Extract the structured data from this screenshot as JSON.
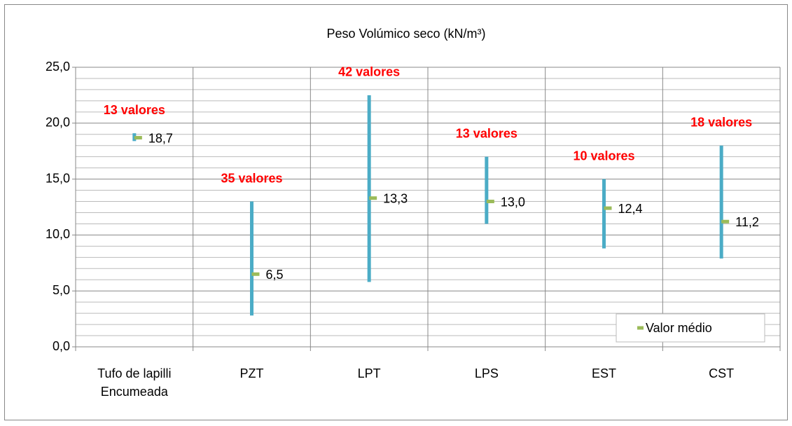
{
  "chart_data": {
    "type": "range",
    "title": "Peso Volúmico  seco (kN/m³)",
    "categories": [
      "Tufo de lapilli Encumeada",
      "PZT",
      "LPT",
      "LPS",
      "EST",
      "CST"
    ],
    "ranges": {
      "color": "#4bacc6",
      "low": [
        18.4,
        2.8,
        5.8,
        11.0,
        8.8,
        7.9
      ],
      "high": [
        19.1,
        13.0,
        22.5,
        17.0,
        15.0,
        18.0
      ]
    },
    "series": [
      {
        "name": "Valor médio",
        "color": "#9bbb59",
        "values": [
          18.7,
          6.5,
          13.3,
          13.0,
          12.4,
          11.2
        ],
        "value_labels": [
          "18,7",
          "6,5",
          "13,3",
          "13,0",
          "12,4",
          "11,2"
        ]
      }
    ],
    "annotations": [
      "13 valores",
      "35 valores",
      "42 valores",
      "13 valores",
      "10 valores",
      "18 valores"
    ],
    "annotation_color": "#ff0000",
    "ylim": [
      0,
      25
    ],
    "yticks": [
      {
        "value": 0,
        "label": "0,0"
      },
      {
        "value": 5,
        "label": "5,0"
      },
      {
        "value": 10,
        "label": "10,0"
      },
      {
        "value": 15,
        "label": "15,0"
      },
      {
        "value": 20,
        "label": "20,0"
      },
      {
        "value": 25,
        "label": "25,0"
      }
    ],
    "yticks_minor": [
      1,
      2,
      3,
      4,
      6,
      7,
      8,
      9,
      11,
      12,
      13,
      14,
      16,
      17,
      18,
      19,
      21,
      22,
      23,
      24
    ],
    "grid": true,
    "legend": "lower right"
  }
}
